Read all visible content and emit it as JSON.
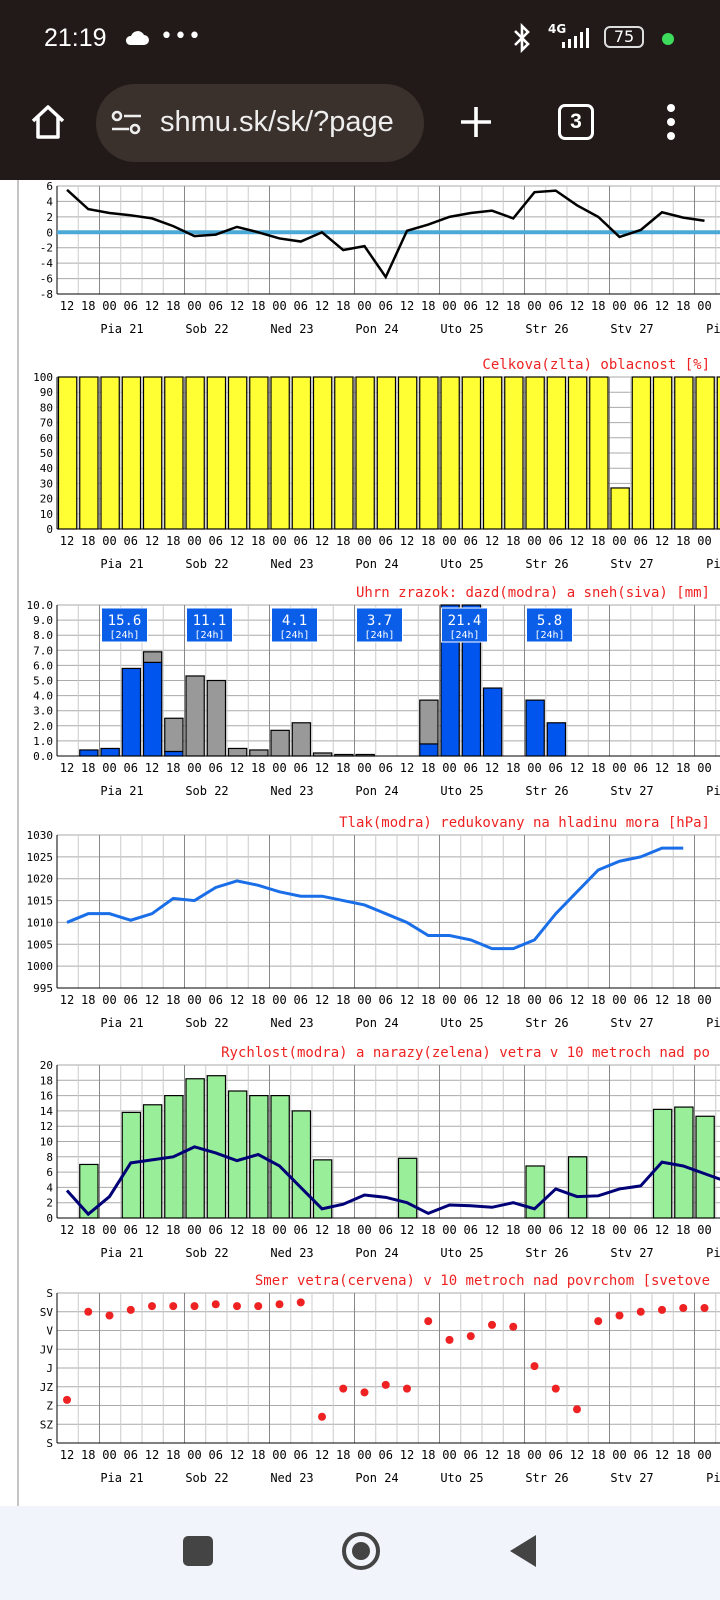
{
  "status": {
    "time": "21:19",
    "battery": "75",
    "network": "4G"
  },
  "browser": {
    "url": "shmu.sk/sk/?page",
    "tab_count": "3"
  },
  "time_axis": {
    "hours": [
      "12",
      "18",
      "00",
      "06",
      "12",
      "18",
      "00",
      "06",
      "12",
      "18",
      "00",
      "06",
      "12",
      "18",
      "00",
      "06",
      "12",
      "18",
      "00",
      "06",
      "12",
      "18",
      "00",
      "06",
      "12",
      "18",
      "00",
      "06",
      "12",
      "18",
      "00",
      "06",
      "12",
      "18",
      "00"
    ],
    "days": [
      "Pia 21",
      "Sob 22",
      "Ned 23",
      "Pon 24",
      "Uto 25",
      "Str 26",
      "Stv 27",
      "Pia"
    ]
  },
  "chart_data": [
    {
      "type": "line",
      "title": "",
      "yticks": [
        "6",
        "4",
        "2",
        "0",
        "-2",
        "-4",
        "-6",
        "-8"
      ],
      "ylim": [
        -8,
        6
      ],
      "zero_line_color": "#4aa9d6",
      "values": [
        5.5,
        3,
        2.5,
        2.2,
        1.8,
        0.8,
        -0.5,
        -0.3,
        0.7,
        0,
        -0.8,
        -1.2,
        0,
        -2.3,
        -1.8,
        -5.8,
        0.2,
        1,
        2,
        2.5,
        2.8,
        1.8,
        5.2,
        5.4,
        3.5,
        2,
        -0.6,
        0.3,
        2.6,
        1.9,
        1.5
      ]
    },
    {
      "type": "bar",
      "title": "Celkova(zlta) oblacnost [%]",
      "yticks": [
        "100",
        "90",
        "80",
        "70",
        "60",
        "50",
        "40",
        "30",
        "20",
        "10",
        "0"
      ],
      "ylim": [
        0,
        100
      ],
      "bar_color": "#ffff33",
      "values": [
        100,
        100,
        100,
        100,
        100,
        100,
        100,
        100,
        100,
        100,
        100,
        100,
        100,
        100,
        100,
        100,
        100,
        100,
        100,
        100,
        100,
        100,
        100,
        100,
        100,
        100,
        27,
        100,
        100,
        100,
        100,
        100
      ]
    },
    {
      "type": "bar",
      "title": "Uhrn zrazok: dazd(modra) a sneh(siva) [mm]",
      "yticks": [
        "10.0",
        "9.0",
        "8.0",
        "7.0",
        "6.0",
        "5.0",
        "4.0",
        "3.0",
        "2.0",
        "1.0",
        "0.0"
      ],
      "ylim": [
        0,
        10
      ],
      "rain_color": "#0055ee",
      "snow_color": "#999999",
      "rain": [
        0,
        0.4,
        0.5,
        5.8,
        6.2,
        0.3,
        0,
        0,
        0,
        0,
        0,
        0,
        0,
        0,
        0,
        0,
        0,
        0.8,
        10,
        10,
        4.5,
        0,
        3.7,
        2.2,
        0,
        0,
        0,
        0,
        0,
        0,
        0,
        0
      ],
      "snow": [
        0,
        0,
        0,
        0,
        0.7,
        2.2,
        5.3,
        5,
        0.5,
        0.4,
        1.7,
        2.2,
        0.2,
        0.1,
        0.1,
        0,
        0,
        2.9,
        0,
        0,
        0,
        0,
        0,
        0,
        0,
        0,
        0,
        0,
        0,
        0,
        0,
        0
      ],
      "totals": [
        {
          "value": "15.6",
          "period": "[24h]",
          "slot": 2
        },
        {
          "value": "11.1",
          "period": "[24h]",
          "slot": 6
        },
        {
          "value": "4.1",
          "period": "[24h]",
          "slot": 10
        },
        {
          "value": "3.7",
          "period": "[24h]",
          "slot": 14
        },
        {
          "value": "21.4",
          "period": "[24h]",
          "slot": 18
        },
        {
          "value": "5.8",
          "period": "[24h]",
          "slot": 22
        }
      ]
    },
    {
      "type": "line",
      "title": "Tlak(modra) redukovany na hladinu mora [hPa]",
      "yticks": [
        "1030",
        "1025",
        "1020",
        "1015",
        "1010",
        "1005",
        "1000",
        "995"
      ],
      "ylim": [
        995,
        1030
      ],
      "line_color": "#1a6ee8",
      "values": [
        1010,
        1012,
        1012,
        1010.5,
        1012,
        1015.5,
        1015,
        1018,
        1019.5,
        1018.5,
        1017,
        1016,
        1016,
        1015,
        1014,
        1012,
        1010,
        1007,
        1007,
        1006,
        1004,
        1004,
        1006,
        1012,
        1017,
        1022,
        1024,
        1025,
        1027,
        1027
      ]
    },
    {
      "type": "bar",
      "title": "Rychlost(modra) a narazy(zelena) vetra v 10 metroch nad po",
      "yticks": [
        "20",
        "18",
        "16",
        "14",
        "12",
        "10",
        "8",
        "6",
        "4",
        "2",
        "0"
      ],
      "ylim": [
        0,
        20
      ],
      "gust_color": "#99ee99",
      "speed_color": "#000077",
      "gusts": [
        0,
        7,
        0,
        13.8,
        14.8,
        16,
        18.2,
        18.6,
        16.6,
        16,
        16,
        14,
        7.6,
        0,
        0,
        0,
        7.8,
        0,
        0,
        0,
        0,
        0,
        6.8,
        0,
        8,
        0,
        0,
        0,
        14.2,
        14.5,
        13.3
      ],
      "speed": [
        3.6,
        0.5,
        2.8,
        7.2,
        7.6,
        8,
        9.3,
        8.5,
        7.5,
        8.3,
        6.8,
        4,
        1.2,
        1.8,
        3,
        2.7,
        2,
        0.6,
        1.7,
        1.6,
        1.4,
        2,
        1.2,
        3.8,
        2.8,
        2.9,
        3.8,
        4.2,
        7.3,
        6.8,
        5.8,
        4.8
      ]
    },
    {
      "type": "scatter",
      "title": "Smer vetra(cervena) v 10 metroch nad povrchom [svetove",
      "yticks": [
        "S",
        "SV",
        "V",
        "JV",
        "J",
        "JZ",
        "Z",
        "SZ",
        "S"
      ],
      "ylim": [
        0,
        8
      ],
      "dot_color": "#ee2222",
      "values": [
        5.7,
        1.0,
        1.2,
        0.9,
        0.7,
        0.7,
        0.7,
        0.6,
        0.7,
        0.7,
        0.6,
        0.5,
        6.6,
        5.1,
        5.3,
        4.9,
        5.1,
        1.5,
        2.5,
        2.3,
        1.7,
        1.8,
        3.9,
        5.1,
        6.2,
        1.5,
        1.2,
        1.0,
        0.9,
        0.8,
        0.8,
        0.8
      ]
    }
  ]
}
